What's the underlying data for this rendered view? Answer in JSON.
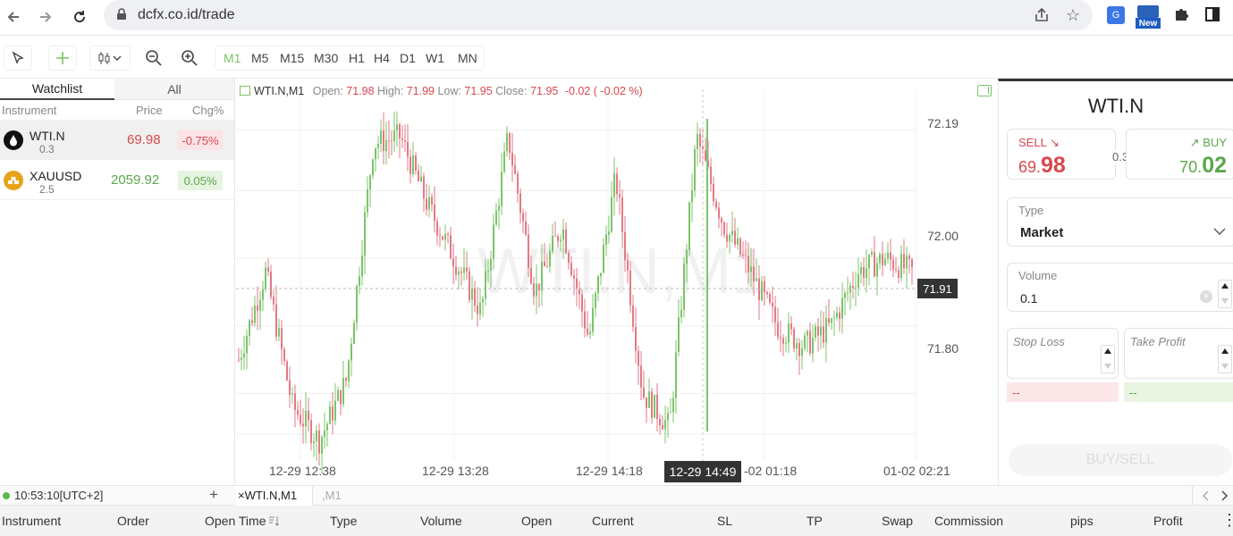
{
  "browser": {
    "url": "dcfx.co.id/trade",
    "new_badge": "New"
  },
  "toolbar": {
    "timeframes": [
      "M1",
      "M5",
      "M15",
      "M30",
      "H1",
      "H4",
      "D1",
      "W1",
      "MN"
    ],
    "active_timeframe": "M1"
  },
  "watchlist": {
    "tabs": [
      "Watchlist",
      "All"
    ],
    "headers": {
      "instrument": "Instrument",
      "price": "Price",
      "change": "Chg%"
    },
    "rows": [
      {
        "symbol": "WTI.N",
        "spread": "0.3",
        "price": "69.98",
        "change": "-0.75%",
        "direction": "down"
      },
      {
        "symbol": "XAUUSD",
        "spread": "2.5",
        "price": "2059.92",
        "change": "0.05%",
        "direction": "up"
      }
    ]
  },
  "chart": {
    "symbol_label": "WTI.N,M1",
    "ohlc": {
      "open_label": "Open:",
      "open": "71.98",
      "high_label": "High:",
      "high": "71.99",
      "low_label": "Low:",
      "low": "71.95",
      "close_label": "Close:",
      "close": "71.95",
      "change": "-0.02 ( -0.02 %)"
    },
    "watermark": "WTI.N,M1",
    "current_price": "71.91",
    "crosshair_time": "12-29 14:49",
    "y_ticks": [
      "72.19",
      "72.00",
      "71.80"
    ],
    "x_ticks": [
      "12-29 12:38",
      "12-29 13:28",
      "12-29 14:18",
      "-02 01:18",
      "01-02 02:21"
    ],
    "colors": {
      "up": "#7cc46a",
      "down": "#e27a86"
    }
  },
  "chart_data": {
    "type": "candlestick",
    "series": [
      {
        "name": "WTI.N,M1",
        "approx_close_path": [
          71.85,
          71.98,
          71.78,
          71.73,
          71.82,
          72.17,
          72.18,
          72.08,
          72.0,
          71.92,
          72.18,
          71.95,
          72.05,
          71.88,
          72.12,
          71.8,
          71.75,
          72.18,
          72.05,
          71.98,
          71.9,
          71.87,
          71.9,
          71.98,
          72.0,
          71.98
        ]
      }
    ],
    "y_range": [
      71.7,
      72.25
    ],
    "xlabel": "",
    "ylabel": ""
  },
  "order_panel": {
    "symbol": "WTI.N",
    "sell": {
      "label": "SELL",
      "arrow": "↘",
      "price_main": "69.",
      "price_big": "98"
    },
    "spread": "0.3",
    "buy": {
      "label": "BUY",
      "arrow": "↗",
      "price_main": "70.",
      "price_big": "02"
    },
    "type": {
      "label": "Type",
      "value": "Market"
    },
    "volume": {
      "label": "Volume",
      "value": "0.1"
    },
    "stop_loss": {
      "label": "Stop Loss",
      "value": "--"
    },
    "take_profit": {
      "label": "Take Profit",
      "value": "--"
    },
    "submit": "BUY/SELL"
  },
  "status": {
    "time": "10:53:10[UTC+2]",
    "add": "+",
    "tabs": [
      {
        "close": "×",
        "label": "WTI.N,M1"
      },
      {
        "label": ",M1"
      }
    ]
  },
  "positions": {
    "columns": [
      "Instrument",
      "Order",
      "Open Time",
      "Type",
      "Volume",
      "Open",
      "Current",
      "SL",
      "TP",
      "Swap",
      "Commission",
      "pips",
      "Profit"
    ]
  }
}
